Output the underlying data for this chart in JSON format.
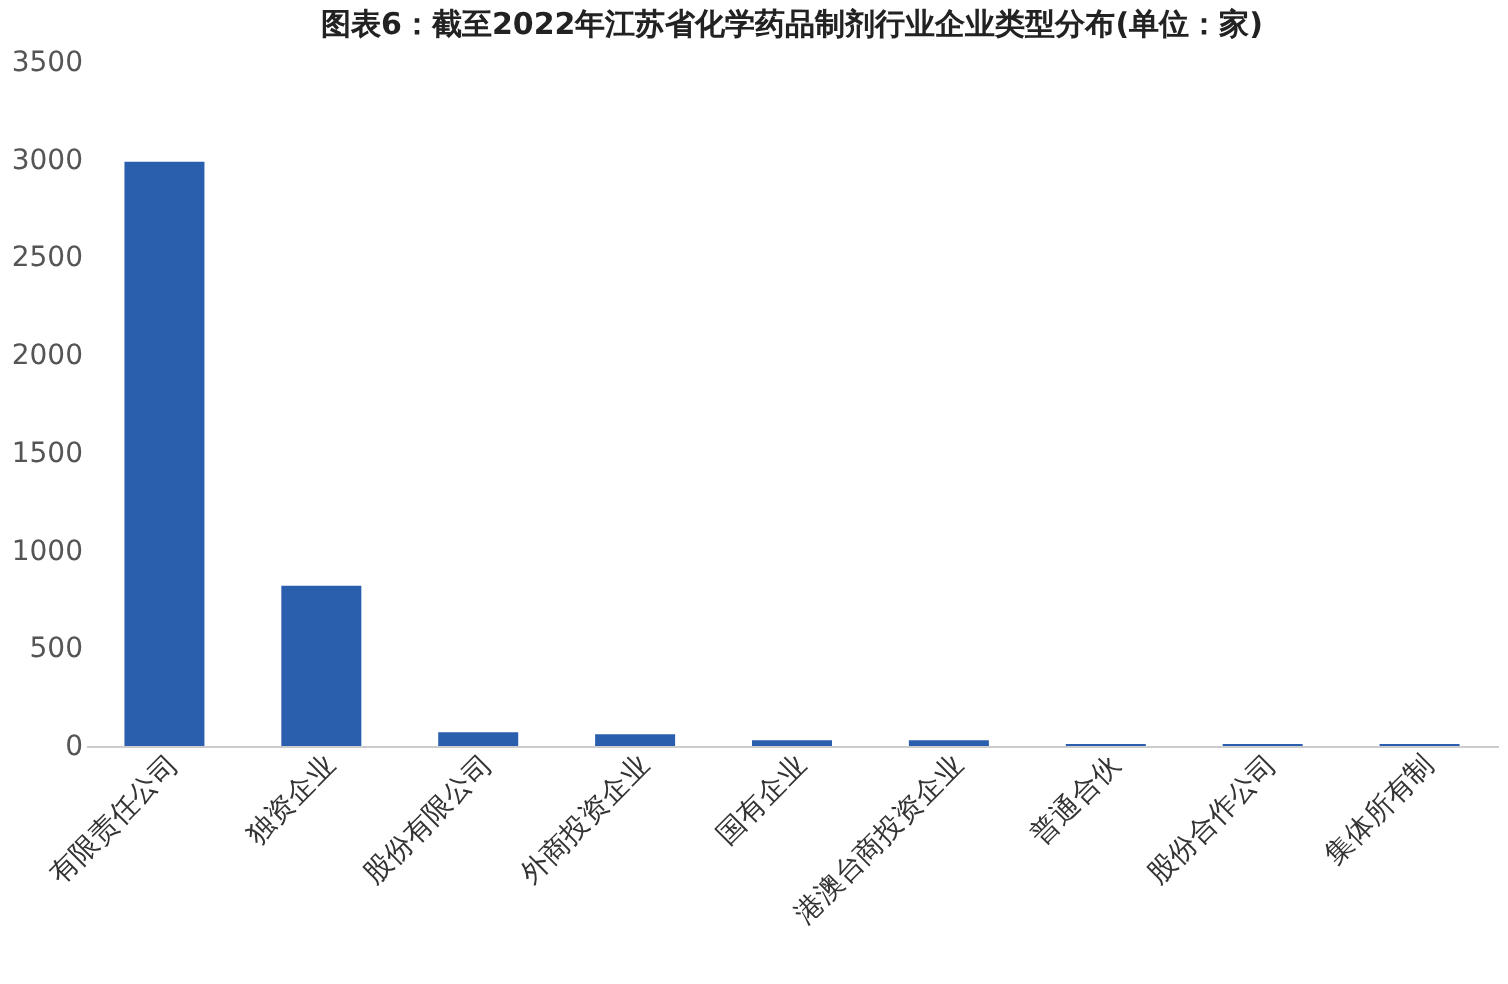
{
  "chart_data": {
    "type": "bar",
    "title": "图表6：截至2022年江苏省化学药品制剂行业企业类型分布(单位：家)",
    "categories": [
      "有限责任公司",
      "独资企业",
      "股份有限公司",
      "外商投资企业",
      "国有企业",
      "港澳台商投资企业",
      "普通合伙",
      "股份合作公司",
      "集体所有制"
    ],
    "values": [
      2990,
      820,
      70,
      60,
      30,
      30,
      10,
      10,
      10
    ],
    "color": "#2a5fad",
    "ylim": [
      0,
      3500
    ],
    "yticks": [
      0,
      500,
      1000,
      1500,
      2000,
      2500,
      3000,
      3500
    ],
    "grid": false
  }
}
